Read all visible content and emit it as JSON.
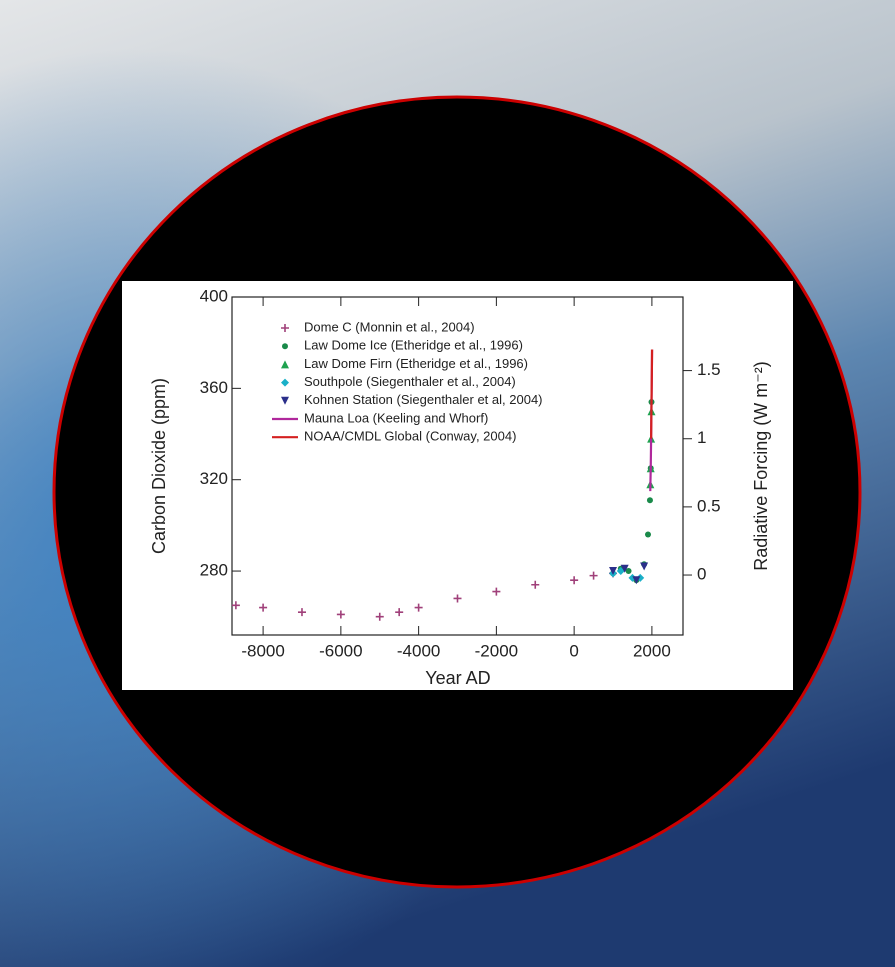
{
  "chart_data": {
    "type": "scatter",
    "xlabel": "Year AD",
    "ylabel": "Carbon Dioxide (ppm)",
    "y2label": "Radiative Forcing (W m⁻²)",
    "xlim": [
      -8800,
      2800
    ],
    "xticks": [
      -8000,
      -6000,
      -4000,
      -2000,
      0,
      2000
    ],
    "ylim": [
      252,
      400
    ],
    "yticks": [
      280,
      320,
      360,
      400
    ],
    "y2lim": [
      -0.44,
      2.04
    ],
    "y2ticks": [
      0,
      0.5,
      1,
      1.5
    ],
    "legend": "upper left",
    "series": [
      {
        "name": "Dome C (Monnin et al., 2004)",
        "color": "#a0407a",
        "marker": "plus",
        "x": [
          -8700,
          -8000,
          -7000,
          -6000,
          -5000,
          -4500,
          -4000,
          -3000,
          -2000,
          -1000,
          0,
          500,
          1000
        ],
        "values": [
          265,
          264,
          262,
          261,
          260,
          262,
          264,
          268,
          271,
          274,
          276,
          278,
          279
        ]
      },
      {
        "name": "Law Dome Ice (Etheridge et al., 1996)",
        "color": "#1a8a4a",
        "marker": "circle",
        "x": [
          1000,
          1200,
          1400,
          1600,
          1800,
          1900,
          1950,
          1970,
          1990
        ],
        "values": [
          279,
          281,
          280,
          276,
          283,
          296,
          311,
          325,
          354
        ]
      },
      {
        "name": "Law Dome Firn (Etheridge et al., 1996)",
        "color": "#1fa24f",
        "marker": "triangle-up",
        "x": [
          1960,
          1970,
          1980,
          1990
        ],
        "values": [
          318,
          325,
          338,
          350
        ]
      },
      {
        "name": "Southpole (Siegenthaler et al., 2004)",
        "color": "#1ab0c8",
        "marker": "diamond",
        "x": [
          1000,
          1200,
          1500,
          1700
        ],
        "values": [
          279,
          280,
          277,
          277
        ]
      },
      {
        "name": "Kohnen Station (Siegenthaler et al, 2004)",
        "color": "#2b2f8a",
        "marker": "triangle-down",
        "x": [
          1000,
          1300,
          1600,
          1800
        ],
        "values": [
          280,
          281,
          276,
          282
        ]
      },
      {
        "name": "Mauna Loa (Keeling and Whorf)",
        "color": "#b0289c",
        "marker": "line",
        "x": [
          1958,
          1970,
          1980,
          1990,
          2000,
          2004
        ],
        "values": [
          315,
          325,
          338,
          354,
          369,
          377
        ]
      },
      {
        "name": "NOAA/CMDL Global  (Conway, 2004)",
        "color": "#d42020",
        "marker": "line",
        "x": [
          1980,
          1990,
          2000,
          2004
        ],
        "values": [
          338,
          354,
          369,
          377
        ]
      }
    ]
  }
}
